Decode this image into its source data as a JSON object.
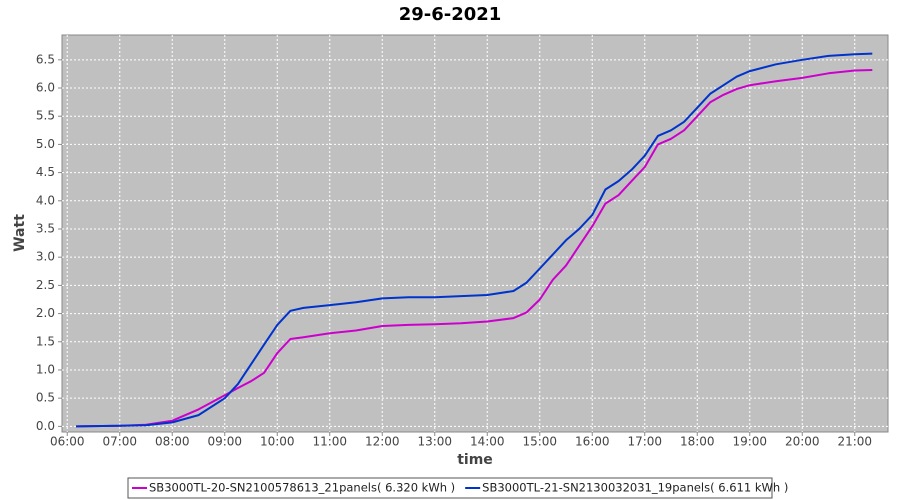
{
  "chart_data": {
    "type": "line",
    "title": "29-6-2021",
    "x_label": "time",
    "y_label": "Watt",
    "x": [
      "06:10",
      "07:00",
      "07:30",
      "08:00",
      "08:30",
      "09:00",
      "09:15",
      "09:30",
      "09:45",
      "10:00",
      "10:15",
      "10:30",
      "11:00",
      "11:30",
      "12:00",
      "12:30",
      "13:00",
      "13:30",
      "14:00",
      "14:30",
      "14:45",
      "15:00",
      "15:15",
      "15:30",
      "15:45",
      "16:00",
      "16:15",
      "16:30",
      "16:45",
      "17:00",
      "17:15",
      "17:30",
      "17:45",
      "18:00",
      "18:15",
      "18:30",
      "18:45",
      "19:00",
      "19:30",
      "20:00",
      "20:30",
      "21:00",
      "21:20"
    ],
    "series": [
      {
        "name": "SB3000TL-20-SN2100578613_21panels( 6.320 kWh )",
        "color": "#cc00cc",
        "values": [
          0,
          0.01,
          0.03,
          0.1,
          0.3,
          0.55,
          0.68,
          0.8,
          0.95,
          1.3,
          1.55,
          1.58,
          1.65,
          1.7,
          1.78,
          1.8,
          1.81,
          1.83,
          1.86,
          1.92,
          2.02,
          2.25,
          2.6,
          2.85,
          3.2,
          3.55,
          3.95,
          4.1,
          4.35,
          4.6,
          5.0,
          5.1,
          5.25,
          5.5,
          5.75,
          5.88,
          5.98,
          6.05,
          6.12,
          6.18,
          6.26,
          6.31,
          6.32
        ]
      },
      {
        "name": "SB3000TL-21-SN2130032031_19panels( 6.611 kWh )",
        "color": "#0033cc",
        "values": [
          0,
          0.01,
          0.02,
          0.07,
          0.2,
          0.5,
          0.75,
          1.1,
          1.45,
          1.8,
          2.05,
          2.1,
          2.15,
          2.2,
          2.27,
          2.29,
          2.29,
          2.31,
          2.33,
          2.4,
          2.55,
          2.8,
          3.05,
          3.3,
          3.5,
          3.75,
          4.2,
          4.35,
          4.55,
          4.8,
          5.15,
          5.25,
          5.4,
          5.65,
          5.9,
          6.05,
          6.2,
          6.3,
          6.42,
          6.5,
          6.57,
          6.6,
          6.61
        ]
      }
    ],
    "xlim": [
      "05:54",
      "21:38"
    ],
    "xticks": [
      "06:00",
      "07:00",
      "08:00",
      "09:00",
      "10:00",
      "11:00",
      "12:00",
      "13:00",
      "14:00",
      "15:00",
      "16:00",
      "17:00",
      "18:00",
      "19:00",
      "20:00",
      "21:00"
    ],
    "ylim": [
      -0.1,
      6.94
    ],
    "yticks": [
      {
        "value": 0,
        "label": "0.0"
      },
      0.5,
      {
        "value": 1,
        "label": "1.0"
      },
      1.5,
      {
        "value": 2,
        "label": "2.0"
      },
      2.5,
      {
        "value": 3,
        "label": "3.0"
      },
      3.5,
      {
        "value": 4,
        "label": "4.0"
      },
      4.5,
      {
        "value": 5,
        "label": "5.0"
      },
      5.5,
      {
        "value": 6,
        "label": "6.0"
      },
      6.5
    ],
    "grid": true
  }
}
